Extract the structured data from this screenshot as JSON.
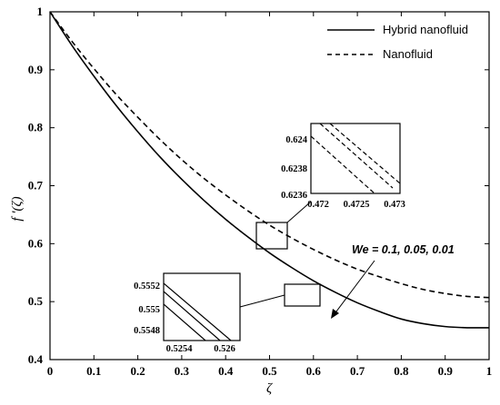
{
  "chart_data": {
    "type": "line",
    "title": "",
    "xlabel": "ζ",
    "ylabel": "f ′(ζ)",
    "xlim": [
      0,
      1
    ],
    "ylim": [
      0.4,
      1
    ],
    "xticks": [
      "0",
      "0.1",
      "0.2",
      "0.3",
      "0.4",
      "0.5",
      "0.6",
      "0.7",
      "0.8",
      "0.9",
      "1"
    ],
    "yticks": [
      "0.4",
      "0.5",
      "0.6",
      "0.7",
      "0.8",
      "0.9",
      "1"
    ],
    "grid": false,
    "legend_position": "top-right",
    "series": [
      {
        "name": "Hybrid nanofluid",
        "style": "solid",
        "x": [
          0,
          0.05,
          0.1,
          0.15,
          0.2,
          0.25,
          0.3,
          0.35,
          0.4,
          0.45,
          0.5,
          0.55,
          0.6,
          0.65,
          0.7,
          0.75,
          0.8,
          0.85,
          0.9,
          0.95,
          1
        ],
        "y": [
          1.0,
          0.942,
          0.889,
          0.839,
          0.793,
          0.75,
          0.711,
          0.675,
          0.642,
          0.612,
          0.584,
          0.559,
          0.536,
          0.516,
          0.498,
          0.483,
          0.47,
          0.462,
          0.457,
          0.455,
          0.455
        ]
      },
      {
        "name": "Nanofluid",
        "style": "dashed",
        "x": [
          0,
          0.05,
          0.1,
          0.15,
          0.2,
          0.25,
          0.3,
          0.35,
          0.4,
          0.45,
          0.5,
          0.55,
          0.6,
          0.65,
          0.7,
          0.75,
          0.8,
          0.85,
          0.9,
          0.95,
          1
        ],
        "y": [
          1.0,
          0.949,
          0.902,
          0.858,
          0.818,
          0.78,
          0.745,
          0.713,
          0.684,
          0.657,
          0.632,
          0.61,
          0.59,
          0.572,
          0.556,
          0.543,
          0.531,
          0.521,
          0.514,
          0.509,
          0.507
        ]
      }
    ],
    "annotation": "We = 0.1, 0.05, 0.01",
    "insets": [
      {
        "xticks": [
          "0.472",
          "0.4725",
          "0.473"
        ],
        "yticks": [
          "0.624",
          "0.6238",
          "0.6236"
        ]
      },
      {
        "xticks": [
          "0.5254",
          "0.526"
        ],
        "yticks": [
          "0.5552",
          "0.555",
          "0.5548"
        ]
      }
    ]
  }
}
